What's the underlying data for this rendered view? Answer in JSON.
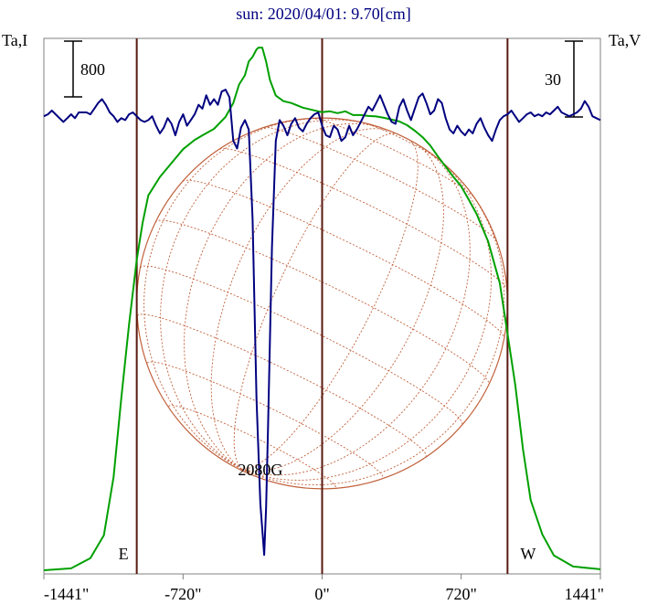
{
  "chart_data": {
    "type": "line",
    "title": "sun: 2020/04/01: 9.70[cm]",
    "left_axis_label": "Ta,I",
    "right_axis_label": "Ta,V",
    "scale_bar_left": "800",
    "scale_bar_right": "30",
    "xlim": [
      -1441,
      1441
    ],
    "x_ticks": [
      {
        "value": -1441,
        "label": "-1441\""
      },
      {
        "value": -720,
        "label": "-720\""
      },
      {
        "value": 0,
        "label": "0\""
      },
      {
        "value": 720,
        "label": "720\""
      },
      {
        "value": 1441,
        "label": "1441\""
      }
    ],
    "vertical_markers": [
      {
        "value": -960,
        "label": "E"
      },
      {
        "value": 0,
        "label": ""
      },
      {
        "value": 960,
        "label": "W"
      }
    ],
    "annotation": {
      "text": "2080G",
      "x": -320
    },
    "series": [
      {
        "key": "intensity",
        "color": "#00a000",
        "axis": "left",
        "ylim": [
          0,
          5800
        ],
        "points": [
          [
            -1441,
            40
          ],
          [
            -1300,
            60
          ],
          [
            -1200,
            170
          ],
          [
            -1130,
            420
          ],
          [
            -1080,
            1050
          ],
          [
            -1040,
            1900
          ],
          [
            -1000,
            2700
          ],
          [
            -960,
            3400
          ],
          [
            -930,
            3800
          ],
          [
            -900,
            4100
          ],
          [
            -840,
            4300
          ],
          [
            -780,
            4450
          ],
          [
            -720,
            4600
          ],
          [
            -660,
            4700
          ],
          [
            -620,
            4750
          ],
          [
            -560,
            4820
          ],
          [
            -500,
            4950
          ],
          [
            -460,
            5100
          ],
          [
            -430,
            5300
          ],
          [
            -400,
            5400
          ],
          [
            -380,
            5550
          ],
          [
            -360,
            5600
          ],
          [
            -340,
            5680
          ],
          [
            -330,
            5700
          ],
          [
            -310,
            5700
          ],
          [
            -290,
            5550
          ],
          [
            -270,
            5350
          ],
          [
            -240,
            5180
          ],
          [
            -200,
            5120
          ],
          [
            -160,
            5100
          ],
          [
            -100,
            5050
          ],
          [
            -60,
            5030
          ],
          [
            -20,
            5010
          ],
          [
            0,
            5000
          ],
          [
            40,
            5010
          ],
          [
            80,
            4990
          ],
          [
            120,
            5010
          ],
          [
            160,
            4970
          ],
          [
            200,
            4970
          ],
          [
            240,
            4960
          ],
          [
            280,
            4955
          ],
          [
            320,
            4940
          ],
          [
            360,
            4920
          ],
          [
            400,
            4900
          ],
          [
            440,
            4860
          ],
          [
            480,
            4800
          ],
          [
            520,
            4730
          ],
          [
            560,
            4640
          ],
          [
            600,
            4520
          ],
          [
            640,
            4410
          ],
          [
            680,
            4300
          ],
          [
            720,
            4200
          ],
          [
            760,
            4050
          ],
          [
            800,
            3900
          ],
          [
            860,
            3600
          ],
          [
            920,
            3150
          ],
          [
            960,
            2600
          ],
          [
            1000,
            2050
          ],
          [
            1040,
            1350
          ],
          [
            1080,
            800
          ],
          [
            1140,
            430
          ],
          [
            1200,
            200
          ],
          [
            1300,
            80
          ],
          [
            1441,
            50
          ]
        ]
      },
      {
        "key": "polarization",
        "color": "#000080",
        "axis": "right",
        "ylim": [
          -242,
          40
        ],
        "points": [
          [
            -1441,
            -1
          ],
          [
            -1420,
            0
          ],
          [
            -1400,
            2
          ],
          [
            -1380,
            0
          ],
          [
            -1360,
            -2
          ],
          [
            -1340,
            -4
          ],
          [
            -1320,
            -2
          ],
          [
            -1300,
            0
          ],
          [
            -1280,
            -2
          ],
          [
            -1260,
            1
          ],
          [
            -1240,
            1
          ],
          [
            -1220,
            1
          ],
          [
            -1200,
            0
          ],
          [
            -1180,
            3
          ],
          [
            -1160,
            6
          ],
          [
            -1140,
            8
          ],
          [
            -1120,
            5
          ],
          [
            -1100,
            1
          ],
          [
            -1080,
            -1
          ],
          [
            -1060,
            -4
          ],
          [
            -1040,
            -2
          ],
          [
            -1020,
            -3
          ],
          [
            -1000,
            0
          ],
          [
            -980,
            1
          ],
          [
            -960,
            -1
          ],
          [
            -940,
            -3
          ],
          [
            -920,
            -4
          ],
          [
            -900,
            -3
          ],
          [
            -880,
            -1
          ],
          [
            -860,
            -6
          ],
          [
            -840,
            -10
          ],
          [
            -820,
            -7
          ],
          [
            -800,
            -2
          ],
          [
            -780,
            -5
          ],
          [
            -760,
            -11
          ],
          [
            -740,
            -4
          ],
          [
            -720,
            0
          ],
          [
            -700,
            -6
          ],
          [
            -680,
            -3
          ],
          [
            -660,
            0
          ],
          [
            -640,
            5
          ],
          [
            -620,
            3
          ],
          [
            -600,
            10
          ],
          [
            -580,
            5
          ],
          [
            -560,
            8
          ],
          [
            -540,
            5
          ],
          [
            -520,
            12
          ],
          [
            -500,
            13
          ],
          [
            -480,
            9
          ],
          [
            -460,
            -14
          ],
          [
            -440,
            -18
          ],
          [
            -420,
            -7
          ],
          [
            -400,
            -3
          ],
          [
            -380,
            -8
          ],
          [
            -360,
            -55
          ],
          [
            -340,
            -150
          ],
          [
            -320,
            -205
          ],
          [
            -300,
            -232
          ],
          [
            -290,
            -207
          ],
          [
            -280,
            -165
          ],
          [
            -260,
            -70
          ],
          [
            -240,
            -14
          ],
          [
            -220,
            -3
          ],
          [
            -200,
            -6
          ],
          [
            -180,
            -11
          ],
          [
            -160,
            -5
          ],
          [
            -140,
            -2
          ],
          [
            -120,
            -7
          ],
          [
            -100,
            -9
          ],
          [
            -80,
            -5
          ],
          [
            -60,
            -2
          ],
          [
            -40,
            0
          ],
          [
            -20,
            1
          ],
          [
            0,
            -6
          ],
          [
            20,
            -11
          ],
          [
            40,
            -12
          ],
          [
            60,
            -6
          ],
          [
            80,
            -8
          ],
          [
            100,
            -14
          ],
          [
            120,
            -12
          ],
          [
            140,
            -6
          ],
          [
            160,
            -11
          ],
          [
            180,
            -8
          ],
          [
            200,
            -4
          ],
          [
            220,
            0
          ],
          [
            240,
            4
          ],
          [
            260,
            2
          ],
          [
            280,
            6
          ],
          [
            300,
            10
          ],
          [
            320,
            5
          ],
          [
            340,
            0
          ],
          [
            360,
            -4
          ],
          [
            380,
            -5
          ],
          [
            400,
            4
          ],
          [
            420,
            8
          ],
          [
            440,
            2
          ],
          [
            460,
            -3
          ],
          [
            480,
            3
          ],
          [
            500,
            9
          ],
          [
            520,
            11
          ],
          [
            540,
            6
          ],
          [
            560,
            0
          ],
          [
            580,
            2
          ],
          [
            600,
            8
          ],
          [
            620,
            6
          ],
          [
            640,
            -2
          ],
          [
            660,
            -8
          ],
          [
            680,
            -10
          ],
          [
            700,
            -6
          ],
          [
            720,
            -9
          ],
          [
            740,
            -11
          ],
          [
            760,
            -8
          ],
          [
            780,
            -10
          ],
          [
            800,
            -5
          ],
          [
            820,
            -2
          ],
          [
            840,
            -7
          ],
          [
            860,
            -11
          ],
          [
            880,
            -14
          ],
          [
            900,
            -8
          ],
          [
            920,
            -3
          ],
          [
            940,
            -1
          ],
          [
            960,
            0
          ],
          [
            980,
            2
          ],
          [
            1000,
            -1
          ],
          [
            1020,
            -4
          ],
          [
            1040,
            -2
          ],
          [
            1060,
            0
          ],
          [
            1080,
            1
          ],
          [
            1100,
            -1
          ],
          [
            1120,
            0
          ],
          [
            1140,
            -1
          ],
          [
            1160,
            1
          ],
          [
            1180,
            0
          ],
          [
            1200,
            2
          ],
          [
            1220,
            4
          ],
          [
            1240,
            1
          ],
          [
            1260,
            0
          ],
          [
            1280,
            -1
          ],
          [
            1300,
            0
          ],
          [
            1320,
            1
          ],
          [
            1340,
            3
          ],
          [
            1360,
            7
          ],
          [
            1380,
            4
          ],
          [
            1400,
            -1
          ],
          [
            1420,
            -2
          ],
          [
            1441,
            -3
          ]
        ]
      }
    ],
    "disk": {
      "radius": 960,
      "latitudes": [
        -60,
        -45,
        -30,
        -15,
        0,
        15,
        30,
        45,
        60,
        75
      ],
      "longitudes": [
        -75,
        -60,
        -45,
        -30,
        -15,
        15,
        30,
        45,
        60,
        75
      ],
      "tilt_deg": -26
    }
  },
  "colors": {
    "title": "#000080",
    "text": "#000000",
    "frame": "#808080",
    "marker": "#5a1a10",
    "disk": "#c0603a"
  }
}
